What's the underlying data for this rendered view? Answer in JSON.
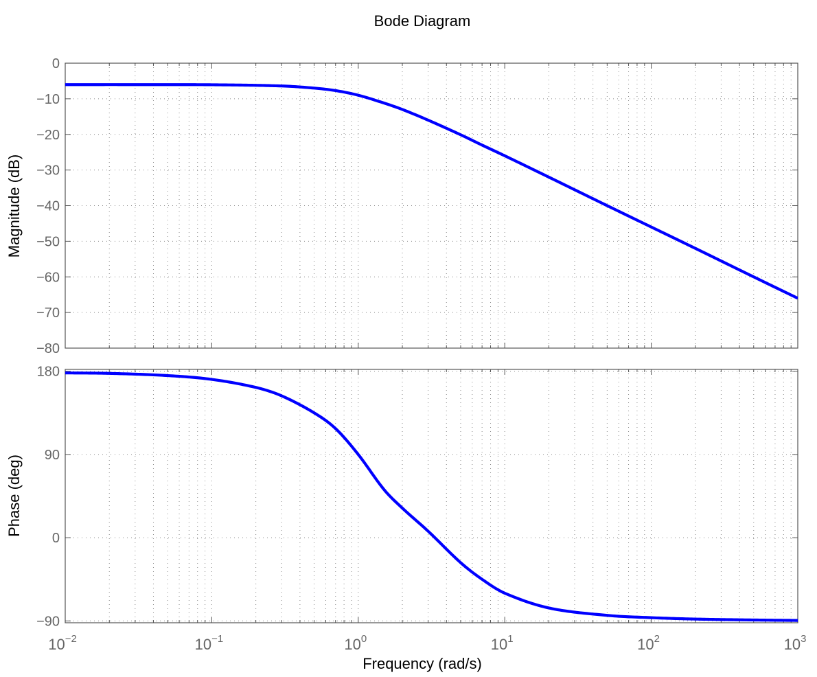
{
  "title": "Bode Diagram",
  "colors": {
    "line": "#0000ff",
    "axes": "#555555",
    "grid": "#8a8a8a",
    "text": "#000000",
    "tick_text": "#666666"
  },
  "chart_data": [
    {
      "type": "line",
      "ylabel": "Magnitude (dB)",
      "xscale": "log",
      "xlim": [
        0.01,
        1000
      ],
      "ylim": [
        -80,
        0
      ],
      "yticks": [
        0,
        -10,
        -20,
        -30,
        -40,
        -50,
        -60,
        -70,
        -80
      ],
      "ytick_labels": [
        "0",
        "−10",
        "−20",
        "−30",
        "−40",
        "−50",
        "−60",
        "−70",
        "−80"
      ],
      "grid": true,
      "series": [
        {
          "x": [
            0.01,
            0.03,
            0.1,
            0.3,
            0.5,
            0.7,
            1,
            1.5,
            2,
            3,
            5,
            7,
            10,
            20,
            50,
            100,
            200,
            500,
            1000
          ],
          "values": [
            -6.02,
            -6.02,
            -6.06,
            -6.4,
            -7.0,
            -7.7,
            -9.0,
            -11.2,
            -13.0,
            -16.0,
            -20.1,
            -23.0,
            -26.0,
            -32.0,
            -40.0,
            -46.0,
            -52.0,
            -60.0,
            -66.0
          ]
        }
      ]
    },
    {
      "type": "line",
      "ylabel": "Phase (deg)",
      "xscale": "log",
      "xlim": [
        0.01,
        1000
      ],
      "ylim": [
        -92,
        182
      ],
      "yticks": [
        180,
        90,
        0,
        -90
      ],
      "ytick_labels": [
        "180",
        "90",
        "0",
        "−90"
      ],
      "grid": true,
      "series": [
        {
          "x": [
            0.01,
            0.02,
            0.05,
            0.1,
            0.2,
            0.3,
            0.5,
            0.7,
            1,
            1.5,
            2,
            3,
            5,
            7,
            10,
            20,
            50,
            100,
            200,
            500,
            1000
          ],
          "values": [
            178.2,
            177.7,
            175.3,
            171.2,
            162.5,
            153.4,
            135.0,
            118.0,
            90.0,
            52.0,
            32.0,
            7.0,
            -27.0,
            -45.0,
            -60.0,
            -76.0,
            -84.0,
            -86.5,
            -88.0,
            -89.0,
            -89.5
          ]
        }
      ]
    }
  ],
  "xaxis": {
    "label": "Frequency  (rad/s)",
    "tick_base": "10",
    "tick_exponents": [
      "−2",
      "−1",
      "0",
      "1",
      "2",
      "3"
    ]
  }
}
